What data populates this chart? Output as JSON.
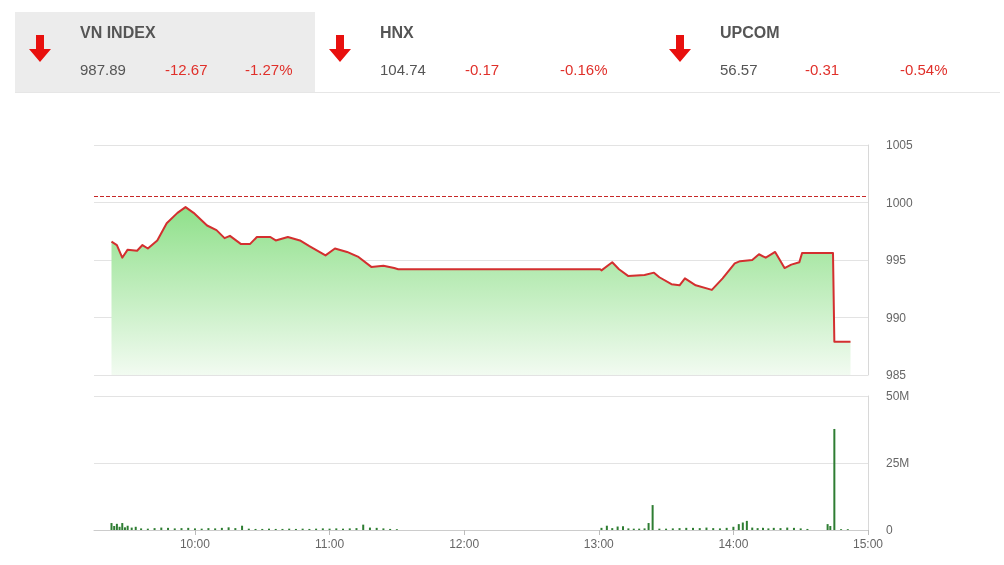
{
  "chart_data": [
    {
      "type": "other",
      "annotations": [
        "VN INDEX",
        "987.89",
        "-12.67",
        "-1.27%",
        "HNX",
        "104.74",
        "-0.17",
        "-0.16%",
        "UPCOM",
        "56.57",
        "-0.31",
        "-0.54%"
      ]
    },
    {
      "type": "area",
      "x": [
        9.38,
        9.42,
        9.46,
        9.5,
        9.57,
        9.61,
        9.65,
        9.72,
        9.79,
        9.87,
        9.93,
        9.99,
        10.09,
        10.16,
        10.22,
        10.26,
        10.34,
        10.41,
        10.46,
        10.56,
        10.6,
        10.69,
        10.78,
        10.85,
        10.97,
        11.04,
        11.13,
        11.21,
        11.31,
        11.4,
        11.48,
        11.51,
        13.01,
        13.02,
        13.1,
        13.15,
        13.22,
        13.34,
        13.41,
        13.45,
        13.54,
        13.6,
        13.64,
        13.72,
        13.84,
        13.92,
        14.01,
        14.05,
        14.14,
        14.19,
        14.24,
        14.31,
        14.38,
        14.43,
        14.49,
        14.51,
        14.74,
        14.75,
        14.87
      ],
      "series": [
        {
          "color": "#d32f2f",
          "values": [
            996.6,
            996.3,
            995.2,
            995.9,
            995.8,
            996.3,
            996.0,
            996.7,
            998.2,
            999.1,
            999.6,
            999.1,
            998.0,
            997.6,
            996.9,
            997.1,
            996.4,
            996.4,
            997.0,
            997.0,
            996.7,
            997.0,
            996.7,
            996.2,
            995.4,
            996.0,
            995.7,
            995.3,
            994.4,
            994.5,
            994.3,
            994.2,
            994.2,
            994.1,
            994.8,
            994.2,
            993.6,
            993.7,
            993.9,
            993.5,
            992.9,
            992.8,
            993.4,
            992.8,
            992.4,
            993.4,
            994.7,
            994.9,
            995.0,
            995.5,
            995.2,
            995.7,
            994.3,
            994.6,
            994.8,
            995.6,
            995.6,
            987.89,
            987.89
          ]
        }
      ],
      "xlim": [
        9.25,
        15
      ],
      "ylim": [
        985,
        1005
      ],
      "yticks": [
        985,
        990,
        995,
        1000,
        1005
      ],
      "grid": "y",
      "tick_labels": "y",
      "ref_lines": [
        {
          "axis": "y",
          "value": 1000.56,
          "color": "#c62828",
          "line_style": "dashed"
        }
      ]
    },
    {
      "type": "bar",
      "x": [
        9.38,
        9.4,
        9.42,
        9.44,
        9.46,
        9.48,
        9.5,
        9.53,
        9.56,
        9.6,
        9.65,
        9.7,
        9.75,
        9.8,
        9.85,
        9.9,
        9.95,
        10.0,
        10.05,
        10.1,
        10.15,
        10.2,
        10.25,
        10.3,
        10.35,
        10.4,
        10.45,
        10.5,
        10.55,
        10.6,
        10.65,
        10.7,
        10.75,
        10.8,
        10.85,
        10.9,
        10.95,
        11.0,
        11.05,
        11.1,
        11.15,
        11.2,
        11.25,
        11.3,
        11.35,
        11.4,
        11.45,
        11.5,
        13.02,
        13.06,
        13.1,
        13.14,
        13.18,
        13.22,
        13.26,
        13.3,
        13.34,
        13.37,
        13.4,
        13.45,
        13.5,
        13.55,
        13.6,
        13.65,
        13.7,
        13.75,
        13.8,
        13.85,
        13.9,
        13.95,
        14.0,
        14.04,
        14.07,
        14.1,
        14.14,
        14.18,
        14.22,
        14.26,
        14.3,
        14.35,
        14.4,
        14.45,
        14.5,
        14.55,
        14.7,
        14.72,
        14.75,
        14.8,
        14.85
      ],
      "series": [
        {
          "color": "#2e7d32",
          "values": [
            2600000,
            1500000,
            2300000,
            1200000,
            2600000,
            1000000,
            1600000,
            900000,
            1200000,
            600000,
            500000,
            700000,
            900000,
            800000,
            600000,
            700000,
            800000,
            600000,
            500000,
            700000,
            600000,
            800000,
            1000000,
            700000,
            1600000,
            500000,
            400000,
            400000,
            500000,
            400000,
            400000,
            500000,
            400000,
            500000,
            400000,
            500000,
            600000,
            500000,
            600000,
            500000,
            600000,
            700000,
            2000000,
            900000,
            800000,
            600000,
            400000,
            300000,
            800000,
            1600000,
            700000,
            1300000,
            1400000,
            600000,
            500000,
            500000,
            600000,
            2600000,
            9300000,
            500000,
            500000,
            600000,
            700000,
            800000,
            800000,
            700000,
            900000,
            700000,
            600000,
            800000,
            1200000,
            2200000,
            2800000,
            3400000,
            900000,
            700000,
            800000,
            600000,
            800000,
            700000,
            900000,
            800000,
            600000,
            400000,
            2200000,
            1500000,
            37700000,
            300000,
            300000
          ]
        }
      ],
      "xlim": [
        9.25,
        15
      ],
      "xticks": [
        {
          "value": 10,
          "label": "10:00"
        },
        {
          "value": 11,
          "label": "11:00"
        },
        {
          "value": 12,
          "label": "12:00"
        },
        {
          "value": 13,
          "label": "13:00"
        },
        {
          "value": 14,
          "label": "14:00"
        },
        {
          "value": 15,
          "label": "15:00"
        }
      ],
      "ylim": [
        0,
        50000000
      ],
      "yticks": [
        0,
        {
          "value": 25000000,
          "label": "25M"
        },
        {
          "value": 50000000,
          "label": "50M"
        }
      ],
      "grid": "y"
    }
  ]
}
